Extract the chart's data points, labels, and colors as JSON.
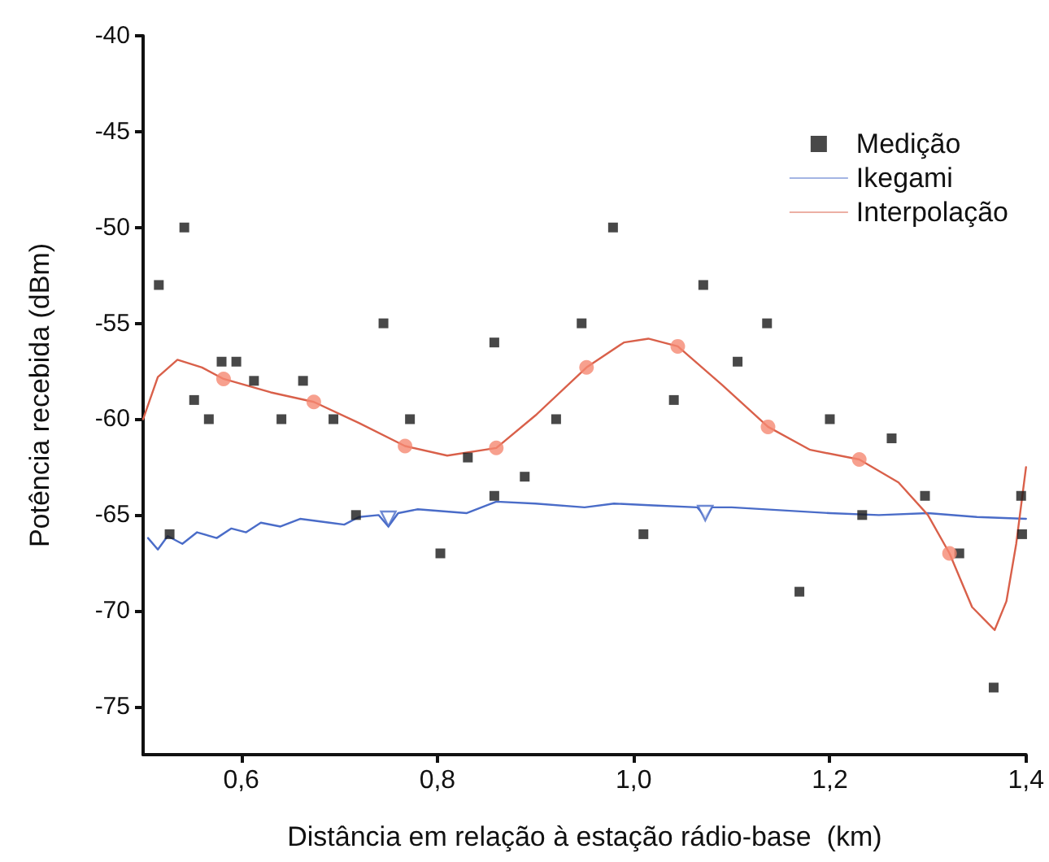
{
  "chart_data": {
    "type": "scatter",
    "xlabel": "Distância em relação à estação rádio-base  (km)",
    "ylabel": "Potência recebida (dBm)",
    "xlim": [
      0.5,
      1.4
    ],
    "xticks": [
      {
        "value": 0.6,
        "label": "0,6"
      },
      {
        "value": 0.8,
        "label": "0,8"
      },
      {
        "value": 1.0,
        "label": "1,0"
      },
      {
        "value": 1.2,
        "label": "1,2"
      },
      {
        "value": 1.4,
        "label": "1,4"
      }
    ],
    "ylim": [
      -77.5,
      -40
    ],
    "yticks": [
      -75,
      -70,
      -65,
      -60,
      -55,
      -50,
      -45,
      -40
    ],
    "grid": false,
    "legend": "top right",
    "series": [
      {
        "name": "Medição",
        "marker": "square",
        "color": "#1a1a1a",
        "x": [
          0.516,
          0.527,
          0.542,
          0.552,
          0.567,
          0.58,
          0.595,
          0.613,
          0.641,
          0.663,
          0.694,
          0.717,
          0.745,
          0.772,
          0.803,
          0.831,
          0.858,
          0.858,
          0.889,
          0.921,
          0.947,
          0.979,
          1.01,
          1.041,
          1.071,
          1.106,
          1.136,
          1.169,
          1.2,
          1.233,
          1.263,
          1.297,
          1.332,
          1.367,
          1.395,
          1.396
        ],
        "values": [
          -53,
          -66,
          -50,
          -59,
          -60,
          -57,
          -57,
          -58,
          -60,
          -58,
          -60,
          -65,
          -55,
          -60,
          -67,
          -62,
          -56,
          -64,
          -63,
          -60,
          -55,
          -50,
          -66,
          -59,
          -53,
          -57,
          -55,
          -69,
          -60,
          -65,
          -61,
          -64,
          -67,
          -74,
          -64,
          -66
        ]
      },
      {
        "name": "Ikegami",
        "type": "line",
        "marker": "none",
        "color": "#4a6cc8",
        "x": [
          0.505,
          0.515,
          0.525,
          0.54,
          0.555,
          0.575,
          0.59,
          0.605,
          0.62,
          0.64,
          0.66,
          0.69,
          0.705,
          0.72,
          0.74,
          0.75,
          0.76,
          0.78,
          0.83,
          0.86,
          0.9,
          0.95,
          0.98,
          1.02,
          1.065,
          1.073,
          1.08,
          1.1,
          1.2,
          1.25,
          1.3,
          1.35,
          1.4
        ],
        "values": [
          -66.2,
          -66.8,
          -66.1,
          -66.5,
          -65.9,
          -66.2,
          -65.7,
          -65.9,
          -65.4,
          -65.6,
          -65.2,
          -65.4,
          -65.5,
          -65.1,
          -65.0,
          -65.6,
          -64.9,
          -64.7,
          -64.9,
          -64.3,
          -64.4,
          -64.6,
          -64.4,
          -64.5,
          -64.6,
          -65.1,
          -64.6,
          -64.6,
          -64.9,
          -65.0,
          -64.9,
          -65.1,
          -65.2
        ]
      },
      {
        "type": "scatter",
        "marker": "triangle",
        "color": "#4a6cc8",
        "x": [
          0.75,
          1.073
        ],
        "values": [
          -65.2,
          -64.9
        ]
      },
      {
        "name": "Interpolação",
        "type": "line",
        "marker": "none",
        "color": "#d9604a",
        "x": [
          0.5,
          0.515,
          0.535,
          0.56,
          0.582,
          0.63,
          0.674,
          0.72,
          0.767,
          0.81,
          0.86,
          0.9,
          0.952,
          0.99,
          1.015,
          1.045,
          1.09,
          1.137,
          1.18,
          1.23,
          1.27,
          1.3,
          1.322,
          1.345,
          1.368,
          1.38,
          1.39,
          1.4
        ],
        "values": [
          -60,
          -57.8,
          -56.9,
          -57.3,
          -57.9,
          -58.6,
          -59.1,
          -60.2,
          -61.4,
          -61.9,
          -61.5,
          -59.8,
          -57.3,
          -56.0,
          -55.8,
          -56.2,
          -58.2,
          -60.4,
          -61.6,
          -62.1,
          -63.3,
          -65.0,
          -67.0,
          -69.8,
          -71.0,
          -69.5,
          -66.5,
          -62.5
        ]
      },
      {
        "type": "scatter",
        "marker": "circle",
        "color": "#f58872",
        "x": [
          0.582,
          0.674,
          0.767,
          0.86,
          0.952,
          1.045,
          1.137,
          1.23,
          1.322
        ],
        "values": [
          -57.9,
          -59.1,
          -61.4,
          -61.5,
          -57.3,
          -56.2,
          -60.4,
          -62.1,
          -67.0
        ]
      }
    ]
  }
}
